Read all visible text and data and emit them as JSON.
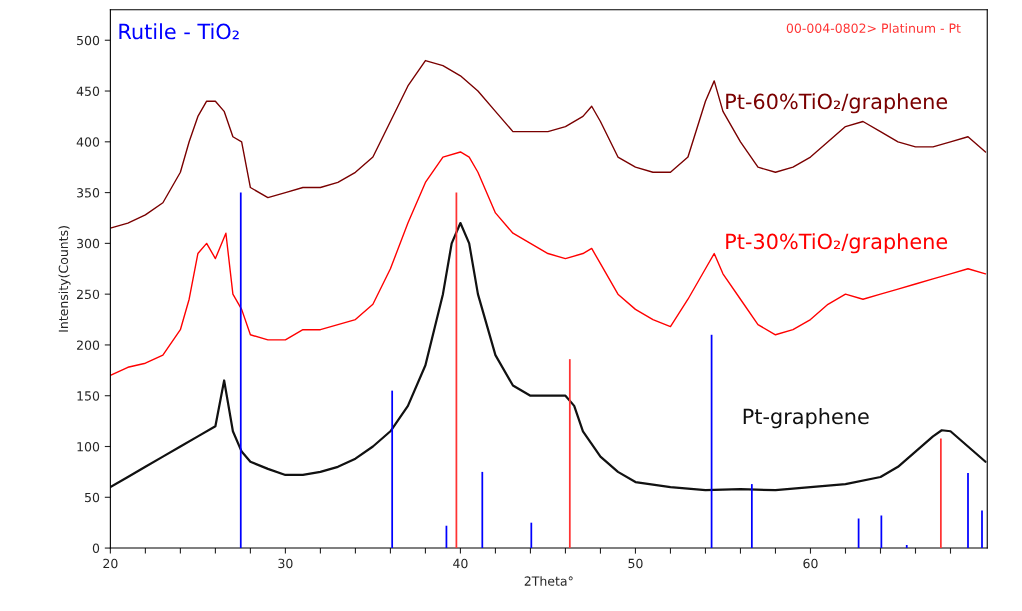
{
  "chart_data": {
    "type": "line",
    "xlabel": "2Theta°",
    "ylabel": "Intensity(Counts)",
    "xlim": [
      20,
      70.1
    ],
    "ylim": [
      0,
      530
    ],
    "xticks": [
      20,
      {
        "value": 22,
        "label": null
      },
      {
        "value": 24,
        "label": null
      },
      {
        "value": 26,
        "label": null
      },
      {
        "value": 28,
        "label": null
      },
      30,
      {
        "value": 32,
        "label": null
      },
      {
        "value": 34,
        "label": null
      },
      {
        "value": 36,
        "label": null
      },
      {
        "value": 38,
        "label": null
      },
      40,
      {
        "value": 42,
        "label": null
      },
      {
        "value": 44,
        "label": null
      },
      {
        "value": 46,
        "label": null
      },
      {
        "value": 48,
        "label": null
      },
      50,
      {
        "value": 52,
        "label": null
      },
      {
        "value": 54,
        "label": null
      },
      {
        "value": 56,
        "label": null
      },
      {
        "value": 58,
        "label": null
      },
      60,
      {
        "value": 62,
        "label": null
      },
      {
        "value": 64,
        "label": null
      },
      {
        "value": 66,
        "label": null
      },
      {
        "value": 68,
        "label": null
      }
    ],
    "yticks": [
      0,
      50,
      100,
      150,
      200,
      250,
      300,
      350,
      400,
      450,
      500
    ],
    "grid": false,
    "legend": false,
    "series": [
      {
        "name": "Pt-60%TiO₂/graphene",
        "color": "#7a0000",
        "x": [
          20,
          21,
          22,
          23,
          24,
          24.5,
          25,
          25.5,
          26,
          26.5,
          27,
          27.5,
          28,
          29,
          30,
          31,
          32,
          33,
          34,
          35,
          36,
          37,
          38,
          39,
          40,
          41,
          42,
          43,
          44,
          45,
          46,
          47,
          47.5,
          48,
          49,
          50,
          51,
          52,
          53,
          54,
          54.5,
          55,
          56,
          57,
          58,
          59,
          60,
          61,
          62,
          63,
          64,
          65,
          66,
          67,
          68,
          69,
          70
        ],
        "values": [
          315,
          320,
          328,
          340,
          370,
          400,
          425,
          440,
          440,
          430,
          405,
          400,
          355,
          345,
          350,
          355,
          355,
          360,
          370,
          385,
          420,
          455,
          480,
          475,
          465,
          450,
          430,
          410,
          410,
          410,
          415,
          425,
          435,
          420,
          385,
          375,
          370,
          370,
          385,
          440,
          460,
          430,
          400,
          375,
          370,
          375,
          385,
          400,
          415,
          420,
          410,
          400,
          395,
          395,
          400,
          405,
          390
        ]
      },
      {
        "name": "Pt-30%TiO₂/graphene",
        "color": "#ff0000",
        "x": [
          20,
          21,
          22,
          23,
          24,
          24.5,
          25,
          25.5,
          26,
          26.6,
          27,
          27.5,
          28,
          29,
          30,
          31,
          32,
          33,
          34,
          35,
          36,
          37,
          38,
          39,
          40,
          40.5,
          41,
          42,
          43,
          44,
          45,
          46,
          47,
          47.5,
          48,
          49,
          50,
          51,
          52,
          53,
          54,
          54.5,
          55,
          56,
          57,
          58,
          59,
          60,
          61,
          62,
          63,
          64,
          65,
          66,
          67,
          68,
          69,
          70
        ],
        "values": [
          170,
          178,
          182,
          190,
          215,
          245,
          290,
          300,
          285,
          310,
          250,
          235,
          210,
          205,
          205,
          215,
          215,
          220,
          225,
          240,
          275,
          320,
          360,
          385,
          390,
          385,
          370,
          330,
          310,
          300,
          290,
          285,
          290,
          295,
          280,
          250,
          235,
          225,
          218,
          245,
          275,
          290,
          270,
          245,
          220,
          210,
          215,
          225,
          240,
          250,
          245,
          250,
          255,
          260,
          265,
          270,
          275,
          270
        ]
      },
      {
        "name": "Pt-graphene",
        "color": "#111111",
        "x": [
          20,
          21,
          22,
          23,
          24,
          25,
          26,
          26.5,
          27,
          27.5,
          28,
          29,
          30,
          31,
          32,
          33,
          34,
          35,
          36,
          37,
          38,
          39,
          39.5,
          40,
          40.5,
          41,
          42,
          43,
          44,
          45,
          46,
          46.5,
          47,
          48,
          49,
          50,
          52,
          54,
          56,
          58,
          60,
          62,
          64,
          65,
          66,
          67,
          67.5,
          68,
          69,
          70
        ],
        "values": [
          60,
          70,
          80,
          90,
          100,
          110,
          120,
          165,
          115,
          95,
          85,
          78,
          72,
          72,
          75,
          80,
          88,
          100,
          115,
          140,
          180,
          250,
          300,
          320,
          300,
          250,
          190,
          160,
          150,
          150,
          150,
          140,
          115,
          90,
          75,
          65,
          60,
          57,
          58,
          57,
          60,
          63,
          70,
          80,
          95,
          110,
          116,
          115,
          100,
          85
        ]
      },
      {
        "name": "Rutile - TiO₂",
        "type": "bar",
        "color": "#0000ff",
        "x": [
          27.45,
          36.1,
          39.2,
          41.25,
          44.05,
          54.35,
          56.65,
          62.75,
          64.05,
          65.5,
          69.0,
          69.8
        ],
        "values": [
          350,
          155,
          22,
          75,
          25,
          210,
          63,
          29,
          32,
          3,
          74,
          37
        ]
      },
      {
        "name": "00-004-0802> Platinum - Pt",
        "type": "bar",
        "color": "#ff3333",
        "x": [
          39.77,
          46.25,
          67.45
        ],
        "values": [
          350,
          186,
          108
        ]
      }
    ]
  }
}
